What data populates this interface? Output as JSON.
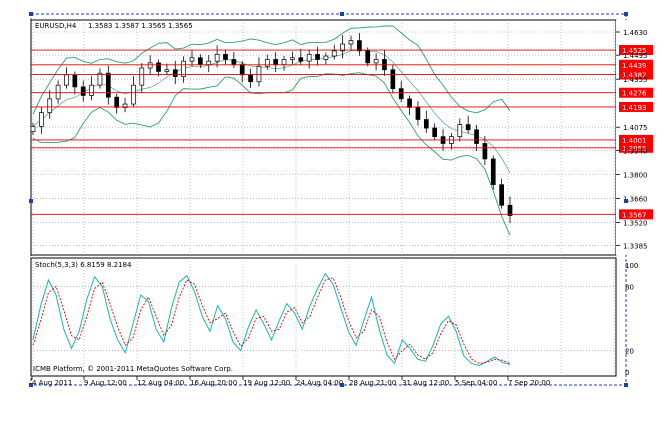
{
  "window": {
    "symbol_label": "EURUSD,H4",
    "ohlc_readout": "1.3583 1.3587 1.3565 1.3565",
    "copyright": "ICMB Platform, © 2001-2011 MetaQuotes Software Corp."
  },
  "indicator": {
    "label": "Stoch(5,3,3) 6.8159 8.2184",
    "y_ticks": [
      "100",
      "80",
      "20",
      "0"
    ]
  },
  "colors": {
    "candle": "#000000",
    "bollinger": "#2e9e6a",
    "level_line": "#e00000",
    "level_tag_bg": "#ff0000",
    "stoch_main": "#1ab3b3",
    "stoch_signal": "#e00000",
    "border": "#1c3faa"
  },
  "chart_data": [
    {
      "type": "candlestick",
      "title": "EURUSD,H4",
      "y_ticks": [
        "1.4630",
        "1.4495",
        "1.4355",
        "1.4075",
        "1.3940",
        "1.3800",
        "1.3660",
        "1.3520",
        "1.3385"
      ],
      "price_levels": [
        "1.4525",
        "1.4439",
        "1.4382",
        "1.4276",
        "1.4193",
        "1.4001",
        "1.3955",
        "1.3567"
      ],
      "x_ticks": [
        "4 Aug 2011",
        "9 Aug 12:00",
        "12 Aug 04:00",
        "16 Aug 20:00",
        "19 Aug 12:00",
        "24 Aug 04:00",
        "28 Aug 21:00",
        "31 Aug 12:00",
        "5 Sep 04:00",
        "7 Sep 20:00"
      ],
      "close_path": [
        1.408,
        1.416,
        1.424,
        1.432,
        1.438,
        1.431,
        1.426,
        1.432,
        1.439,
        1.425,
        1.419,
        1.421,
        1.432,
        1.442,
        1.445,
        1.44,
        1.441,
        1.437,
        1.446,
        1.448,
        1.444,
        1.446,
        1.45,
        1.447,
        1.444,
        1.438,
        1.434,
        1.443,
        1.447,
        1.444,
        1.447,
        1.448,
        1.446,
        1.45,
        1.447,
        1.449,
        1.452,
        1.456,
        1.458,
        1.452,
        1.445,
        1.447,
        1.441,
        1.43,
        1.424,
        1.419,
        1.412,
        1.407,
        1.402,
        1.398,
        1.402,
        1.409,
        1.406,
        1.398,
        1.389,
        1.374,
        1.362,
        1.356
      ]
    },
    {
      "type": "line",
      "title": "Stoch(5,3,3) 6.8159 8.2184",
      "ylim": [
        0,
        100
      ],
      "series": [
        {
          "values": [
            30,
            62,
            86,
            72,
            40,
            22,
            38,
            68,
            89,
            80,
            50,
            30,
            18,
            45,
            72,
            66,
            40,
            28,
            60,
            84,
            90,
            75,
            52,
            38,
            62,
            50,
            28,
            20,
            42,
            58,
            45,
            30,
            48,
            64,
            55,
            40,
            62,
            78,
            92,
            82,
            60,
            38,
            25,
            48,
            70,
            40,
            16,
            8,
            30,
            22,
            12,
            10,
            25,
            45,
            52,
            38,
            15,
            8,
            6,
            10,
            14,
            9,
            7
          ]
        },
        {
          "values": [
            25,
            48,
            74,
            80,
            58,
            34,
            30,
            52,
            78,
            84,
            64,
            42,
            25,
            32,
            58,
            70,
            52,
            34,
            44,
            70,
            86,
            82,
            62,
            46,
            50,
            55,
            38,
            24,
            32,
            50,
            52,
            38,
            40,
            56,
            60,
            46,
            52,
            70,
            86,
            88,
            70,
            48,
            32,
            38,
            58,
            52,
            28,
            12,
            20,
            26,
            16,
            12,
            18,
            36,
            48,
            44,
            26,
            12,
            8,
            9,
            12,
            11,
            8
          ]
        }
      ]
    }
  ]
}
